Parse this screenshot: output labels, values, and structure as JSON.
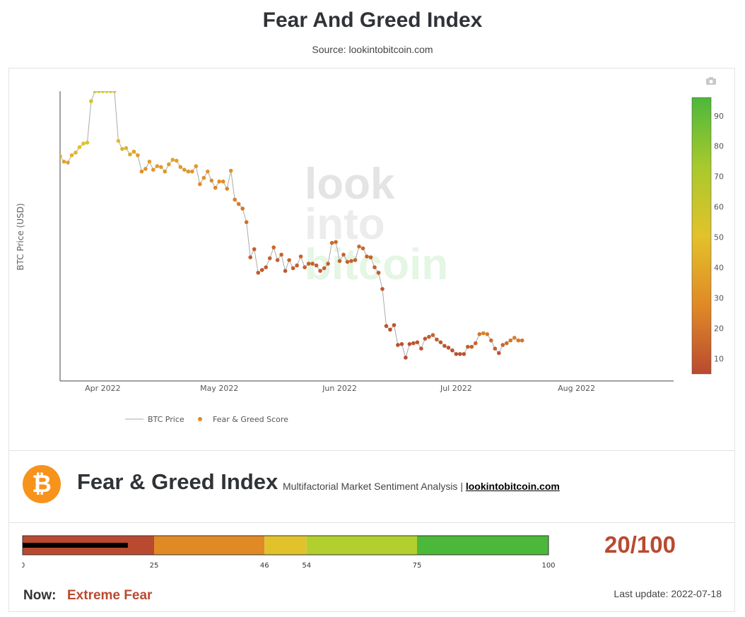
{
  "header": {
    "title": "Fear And Greed Index",
    "source": "Source: lookintobitcoin.com"
  },
  "watermark": {
    "line1": "look",
    "line2": "into",
    "line3": "bitcoin"
  },
  "chart_data": {
    "type": "line",
    "ylabel": "BTC Price (USD)",
    "x_ticks": [
      "Apr 2022",
      "May 2022",
      "Jun 2022",
      "Jul 2022",
      "Aug 2022"
    ],
    "x_tick_dates": [
      "2022-04-01",
      "2022-05-01",
      "2022-06-01",
      "2022-07-01",
      "2022-08-01"
    ],
    "x_range": [
      "2022-03-21",
      "2022-08-26"
    ],
    "y_range": [
      19000,
      48500
    ],
    "colorbar": {
      "ticks": [
        10,
        20,
        30,
        40,
        50,
        60,
        70,
        80,
        90
      ],
      "range": [
        5,
        96
      ],
      "colors": [
        "#b94a30",
        "#e08a26",
        "#e2c22a",
        "#a8c92d",
        "#4cb83a"
      ]
    },
    "legend": {
      "placement": "bottom-left",
      "line_label": "BTC Price",
      "dot_label": "Fear & Greed Score"
    },
    "series": [
      {
        "name": "BTC Price",
        "line_color": "#aaaaaa",
        "points": [
          {
            "x": "2022-03-21",
            "y": 41300,
            "fg": 42
          },
          {
            "x": "2022-03-22",
            "y": 40700,
            "fg": 38
          },
          {
            "x": "2022-03-23",
            "y": 40600,
            "fg": 38
          },
          {
            "x": "2022-03-24",
            "y": 41400,
            "fg": 44
          },
          {
            "x": "2022-03-25",
            "y": 41700,
            "fg": 46
          },
          {
            "x": "2022-03-26",
            "y": 42300,
            "fg": 50
          },
          {
            "x": "2022-03-27",
            "y": 42700,
            "fg": 52
          },
          {
            "x": "2022-03-28",
            "y": 42800,
            "fg": 55
          },
          {
            "x": "2022-03-29",
            "y": 47400,
            "fg": 56
          },
          {
            "x": "2022-03-30",
            "y": 48500,
            "fg": 58
          },
          {
            "x": "2022-03-31",
            "y": 48500,
            "fg": 57
          },
          {
            "x": "2022-04-01",
            "y": 48500,
            "fg": 56
          },
          {
            "x": "2022-04-02",
            "y": 48500,
            "fg": 54
          },
          {
            "x": "2022-04-03",
            "y": 48500,
            "fg": 55
          },
          {
            "x": "2022-04-04",
            "y": 48500,
            "fg": 53
          },
          {
            "x": "2022-04-05",
            "y": 43000,
            "fg": 48
          },
          {
            "x": "2022-04-06",
            "y": 42100,
            "fg": 44
          },
          {
            "x": "2022-04-07",
            "y": 42200,
            "fg": 44
          },
          {
            "x": "2022-04-08",
            "y": 41500,
            "fg": 40
          },
          {
            "x": "2022-04-09",
            "y": 41800,
            "fg": 38
          },
          {
            "x": "2022-04-10",
            "y": 41400,
            "fg": 36
          },
          {
            "x": "2022-04-11",
            "y": 39600,
            "fg": 30
          },
          {
            "x": "2022-04-12",
            "y": 39900,
            "fg": 32
          },
          {
            "x": "2022-04-13",
            "y": 40700,
            "fg": 36
          },
          {
            "x": "2022-04-14",
            "y": 39800,
            "fg": 33
          },
          {
            "x": "2022-04-15",
            "y": 40200,
            "fg": 35
          },
          {
            "x": "2022-04-16",
            "y": 40100,
            "fg": 34
          },
          {
            "x": "2022-04-17",
            "y": 39600,
            "fg": 33
          },
          {
            "x": "2022-04-18",
            "y": 40400,
            "fg": 35
          },
          {
            "x": "2022-04-19",
            "y": 40900,
            "fg": 37
          },
          {
            "x": "2022-04-20",
            "y": 40800,
            "fg": 37
          },
          {
            "x": "2022-04-21",
            "y": 40100,
            "fg": 34
          },
          {
            "x": "2022-04-22",
            "y": 39800,
            "fg": 33
          },
          {
            "x": "2022-04-23",
            "y": 39600,
            "fg": 32
          },
          {
            "x": "2022-04-24",
            "y": 39600,
            "fg": 32
          },
          {
            "x": "2022-04-25",
            "y": 40200,
            "fg": 34
          },
          {
            "x": "2022-04-26",
            "y": 38200,
            "fg": 28
          },
          {
            "x": "2022-04-27",
            "y": 38900,
            "fg": 30
          },
          {
            "x": "2022-04-28",
            "y": 39600,
            "fg": 32
          },
          {
            "x": "2022-04-29",
            "y": 38600,
            "fg": 29
          },
          {
            "x": "2022-04-30",
            "y": 37800,
            "fg": 26
          },
          {
            "x": "2022-05-01",
            "y": 38500,
            "fg": 28
          },
          {
            "x": "2022-05-02",
            "y": 38500,
            "fg": 28
          },
          {
            "x": "2022-05-03",
            "y": 37700,
            "fg": 26
          },
          {
            "x": "2022-05-04",
            "y": 39700,
            "fg": 32
          },
          {
            "x": "2022-05-05",
            "y": 36500,
            "fg": 24
          },
          {
            "x": "2022-05-06",
            "y": 36000,
            "fg": 22
          },
          {
            "x": "2022-05-07",
            "y": 35500,
            "fg": 21
          },
          {
            "x": "2022-05-08",
            "y": 34000,
            "fg": 18
          },
          {
            "x": "2022-05-09",
            "y": 30100,
            "fg": 11
          },
          {
            "x": "2022-05-10",
            "y": 31000,
            "fg": 12
          },
          {
            "x": "2022-05-11",
            "y": 28400,
            "fg": 10
          },
          {
            "x": "2022-05-12",
            "y": 28700,
            "fg": 9
          },
          {
            "x": "2022-05-13",
            "y": 29000,
            "fg": 11
          },
          {
            "x": "2022-05-14",
            "y": 30000,
            "fg": 13
          },
          {
            "x": "2022-05-15",
            "y": 31200,
            "fg": 15
          },
          {
            "x": "2022-05-16",
            "y": 29800,
            "fg": 12
          },
          {
            "x": "2022-05-17",
            "y": 30400,
            "fg": 14
          },
          {
            "x": "2022-05-18",
            "y": 28600,
            "fg": 10
          },
          {
            "x": "2022-05-19",
            "y": 29800,
            "fg": 13
          },
          {
            "x": "2022-05-20",
            "y": 28900,
            "fg": 11
          },
          {
            "x": "2022-05-21",
            "y": 29200,
            "fg": 12
          },
          {
            "x": "2022-05-22",
            "y": 30200,
            "fg": 14
          },
          {
            "x": "2022-05-23",
            "y": 29000,
            "fg": 12
          },
          {
            "x": "2022-05-24",
            "y": 29400,
            "fg": 13
          },
          {
            "x": "2022-05-25",
            "y": 29400,
            "fg": 13
          },
          {
            "x": "2022-05-26",
            "y": 29200,
            "fg": 12
          },
          {
            "x": "2022-05-27",
            "y": 28600,
            "fg": 11
          },
          {
            "x": "2022-05-28",
            "y": 28900,
            "fg": 12
          },
          {
            "x": "2022-05-29",
            "y": 29400,
            "fg": 13
          },
          {
            "x": "2022-05-30",
            "y": 31700,
            "fg": 16
          },
          {
            "x": "2022-05-31",
            "y": 31800,
            "fg": 16
          },
          {
            "x": "2022-06-01",
            "y": 29700,
            "fg": 13
          },
          {
            "x": "2022-06-02",
            "y": 30400,
            "fg": 14
          },
          {
            "x": "2022-06-03",
            "y": 29600,
            "fg": 13
          },
          {
            "x": "2022-06-04",
            "y": 29700,
            "fg": 13
          },
          {
            "x": "2022-06-05",
            "y": 29800,
            "fg": 13
          },
          {
            "x": "2022-06-06",
            "y": 31300,
            "fg": 16
          },
          {
            "x": "2022-06-07",
            "y": 31100,
            "fg": 15
          },
          {
            "x": "2022-06-08",
            "y": 30200,
            "fg": 14
          },
          {
            "x": "2022-06-09",
            "y": 30100,
            "fg": 13
          },
          {
            "x": "2022-06-10",
            "y": 29000,
            "fg": 12
          },
          {
            "x": "2022-06-11",
            "y": 28400,
            "fg": 11
          },
          {
            "x": "2022-06-12",
            "y": 26600,
            "fg": 10
          },
          {
            "x": "2022-06-13",
            "y": 22500,
            "fg": 8
          },
          {
            "x": "2022-06-14",
            "y": 22100,
            "fg": 7
          },
          {
            "x": "2022-06-15",
            "y": 22600,
            "fg": 8
          },
          {
            "x": "2022-06-16",
            "y": 20400,
            "fg": 7
          },
          {
            "x": "2022-06-17",
            "y": 20500,
            "fg": 7
          },
          {
            "x": "2022-06-18",
            "y": 19000,
            "fg": 6
          },
          {
            "x": "2022-06-19",
            "y": 20500,
            "fg": 7
          },
          {
            "x": "2022-06-20",
            "y": 20600,
            "fg": 8
          },
          {
            "x": "2022-06-21",
            "y": 20700,
            "fg": 9
          },
          {
            "x": "2022-06-22",
            "y": 20000,
            "fg": 8
          },
          {
            "x": "2022-06-23",
            "y": 21100,
            "fg": 10
          },
          {
            "x": "2022-06-24",
            "y": 21300,
            "fg": 12
          },
          {
            "x": "2022-06-25",
            "y": 21500,
            "fg": 13
          },
          {
            "x": "2022-06-26",
            "y": 21000,
            "fg": 11
          },
          {
            "x": "2022-06-27",
            "y": 20700,
            "fg": 10
          },
          {
            "x": "2022-06-28",
            "y": 20300,
            "fg": 9
          },
          {
            "x": "2022-06-29",
            "y": 20100,
            "fg": 8
          },
          {
            "x": "2022-06-30",
            "y": 19800,
            "fg": 7
          },
          {
            "x": "2022-07-01",
            "y": 19400,
            "fg": 7
          },
          {
            "x": "2022-07-02",
            "y": 19400,
            "fg": 7
          },
          {
            "x": "2022-07-03",
            "y": 19400,
            "fg": 8
          },
          {
            "x": "2022-07-04",
            "y": 20200,
            "fg": 12
          },
          {
            "x": "2022-07-05",
            "y": 20200,
            "fg": 13
          },
          {
            "x": "2022-07-06",
            "y": 20600,
            "fg": 15
          },
          {
            "x": "2022-07-07",
            "y": 21600,
            "fg": 20
          },
          {
            "x": "2022-07-08",
            "y": 21700,
            "fg": 24
          },
          {
            "x": "2022-07-09",
            "y": 21600,
            "fg": 22
          },
          {
            "x": "2022-07-10",
            "y": 20900,
            "fg": 17
          },
          {
            "x": "2022-07-11",
            "y": 20000,
            "fg": 12
          },
          {
            "x": "2022-07-12",
            "y": 19500,
            "fg": 9
          },
          {
            "x": "2022-07-13",
            "y": 20400,
            "fg": 14
          },
          {
            "x": "2022-07-14",
            "y": 20600,
            "fg": 17
          },
          {
            "x": "2022-07-15",
            "y": 20900,
            "fg": 20
          },
          {
            "x": "2022-07-16",
            "y": 21200,
            "fg": 23
          },
          {
            "x": "2022-07-17",
            "y": 20900,
            "fg": 21
          },
          {
            "x": "2022-07-18",
            "y": 20900,
            "fg": 20
          }
        ]
      }
    ]
  },
  "gauge": {
    "score": 20,
    "max": 100,
    "segments": [
      {
        "from": 0,
        "to": 25,
        "color": "#b94a30"
      },
      {
        "from": 25,
        "to": 46,
        "color": "#e08a26"
      },
      {
        "from": 46,
        "to": 54,
        "color": "#e2c22a"
      },
      {
        "from": 54,
        "to": 75,
        "color": "#b2cf2d"
      },
      {
        "from": 75,
        "to": 100,
        "color": "#4cb83a"
      }
    ],
    "tick_labels": [
      "0",
      "25",
      "46",
      "54",
      "75",
      "100"
    ],
    "score_label": "20/100"
  },
  "info": {
    "brand_title": "Fear & Greed Index",
    "brand_subtitle": "Multifactorial Market Sentiment Analysis | ",
    "brand_link": "lookintobitcoin.com",
    "bitcoin_glyph": "₿",
    "now_label": "Now:",
    "now_value": "Extreme Fear",
    "last_update": "Last update: 2022-07-18"
  },
  "icons": {
    "toolbar": "camera-icon",
    "logo": "bitcoin-logo-icon"
  }
}
